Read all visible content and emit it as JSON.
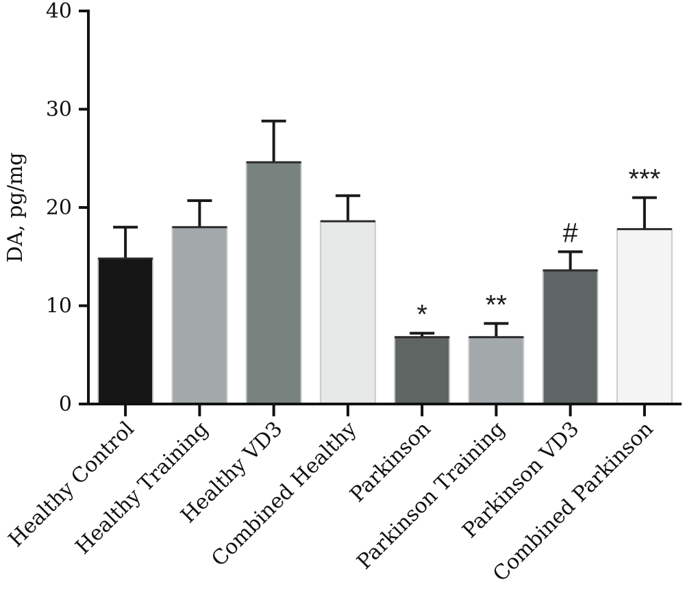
{
  "chart_data": {
    "type": "bar",
    "ylabel": "DA, pg/mg",
    "ylim": [
      0,
      40
    ],
    "yticks": [
      "0",
      "10",
      "20",
      "30",
      "40"
    ],
    "grid": false,
    "error_bars": "upper",
    "categories": [
      "Healthy Control",
      "Healthy Training",
      "Healthy VD3",
      "Combined Healthy",
      "Parkinson",
      "Parkinson Training",
      "Parkinson VD3",
      "Combined Parkinson"
    ],
    "values": [
      14.8,
      18.0,
      24.6,
      18.6,
      6.8,
      6.8,
      13.6,
      17.8
    ],
    "errors": [
      3.2,
      2.7,
      4.2,
      2.6,
      0.4,
      1.4,
      1.9,
      3.2
    ],
    "annotations": [
      "",
      "",
      "",
      "",
      "*",
      "**",
      "#",
      "***"
    ],
    "colors": [
      "#151515",
      "#a3a8aa",
      "#78827f",
      "#e6e8e7",
      "#5f6563",
      "#a3a9ab",
      "#5f6564",
      "#f3f4f3"
    ],
    "edge_color": "#c9ccc9"
  }
}
